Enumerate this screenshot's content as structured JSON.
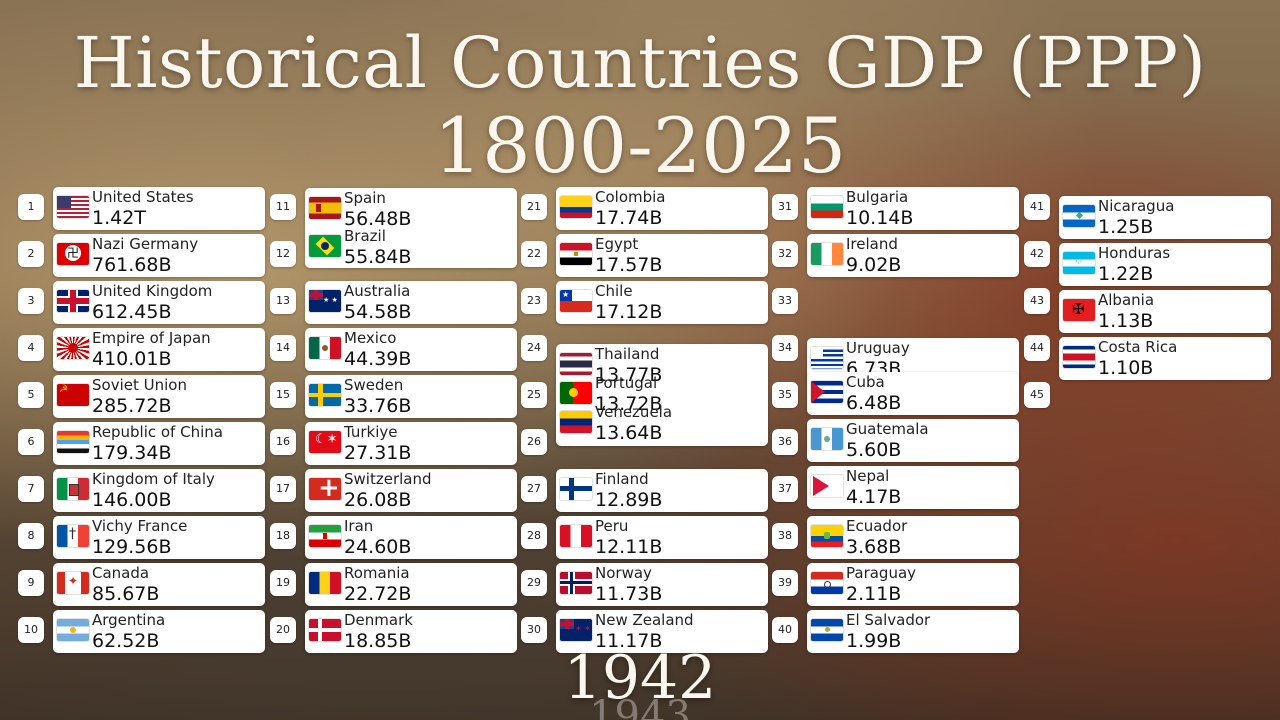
{
  "title_line1": "Historical Countries GDP (PPP)",
  "title_line2": "1800-2025",
  "year": "1942",
  "year_next": "1943",
  "entries": [
    {
      "rank": "1",
      "name": "United States",
      "value": "1.42T"
    },
    {
      "rank": "2",
      "name": "Nazi Germany",
      "value": "761.68B"
    },
    {
      "rank": "3",
      "name": "United Kingdom",
      "value": "612.45B"
    },
    {
      "rank": "4",
      "name": "Empire of Japan",
      "value": "410.01B"
    },
    {
      "rank": "5",
      "name": "Soviet Union",
      "value": "285.72B"
    },
    {
      "rank": "6",
      "name": "Republic of China",
      "value": "179.34B"
    },
    {
      "rank": "7",
      "name": "Kingdom of Italy",
      "value": "146.00B"
    },
    {
      "rank": "8",
      "name": "Vichy France",
      "value": "129.56B"
    },
    {
      "rank": "9",
      "name": "Canada",
      "value": "85.67B"
    },
    {
      "rank": "10",
      "name": "Argentina",
      "value": "62.52B"
    },
    {
      "rank": "11",
      "name": "Spain",
      "value": "56.48B"
    },
    {
      "rank": "12",
      "name": "Brazil",
      "value": "55.84B"
    },
    {
      "rank": "13",
      "name": "Australia",
      "value": "54.58B"
    },
    {
      "rank": "14",
      "name": "Mexico",
      "value": "44.39B"
    },
    {
      "rank": "15",
      "name": "Sweden",
      "value": "33.76B"
    },
    {
      "rank": "16",
      "name": "Turkiye",
      "value": "27.31B"
    },
    {
      "rank": "17",
      "name": "Switzerland",
      "value": "26.08B"
    },
    {
      "rank": "18",
      "name": "Iran",
      "value": "24.60B"
    },
    {
      "rank": "19",
      "name": "Romania",
      "value": "22.72B"
    },
    {
      "rank": "20",
      "name": "Denmark",
      "value": "18.85B"
    },
    {
      "rank": "21",
      "name": "Colombia",
      "value": "17.74B"
    },
    {
      "rank": "22",
      "name": "Egypt",
      "value": "17.57B"
    },
    {
      "rank": "23",
      "name": "Chile",
      "value": "17.12B"
    },
    {
      "rank": "24",
      "name": "Thailand",
      "value": "13.77B"
    },
    {
      "rank": "25",
      "name": "Portugal",
      "value": "13.72B"
    },
    {
      "rank": "26",
      "name": "Venezuela",
      "value": "13.64B"
    },
    {
      "rank": "27",
      "name": "Finland",
      "value": "12.89B"
    },
    {
      "rank": "28",
      "name": "Peru",
      "value": "12.11B"
    },
    {
      "rank": "29",
      "name": "Norway",
      "value": "11.73B"
    },
    {
      "rank": "30",
      "name": "New Zealand",
      "value": "11.17B"
    },
    {
      "rank": "31",
      "name": "Bulgaria",
      "value": "10.14B"
    },
    {
      "rank": "32",
      "name": "Ireland",
      "value": "9.02B"
    },
    {
      "rank": "33",
      "name": "",
      "value": ""
    },
    {
      "rank": "34",
      "name": "Uruguay",
      "value": "6.73B"
    },
    {
      "rank": "35",
      "name": "Cuba",
      "value": "6.48B"
    },
    {
      "rank": "36",
      "name": "Guatemala",
      "value": "5.60B"
    },
    {
      "rank": "37",
      "name": "Nepal",
      "value": "4.17B"
    },
    {
      "rank": "38",
      "name": "Ecuador",
      "value": "3.68B"
    },
    {
      "rank": "39",
      "name": "Paraguay",
      "value": "2.11B"
    },
    {
      "rank": "40",
      "name": "El Salvador",
      "value": "1.99B"
    },
    {
      "rank": "41",
      "name": "Nicaragua",
      "value": "1.25B"
    },
    {
      "rank": "42",
      "name": "Honduras",
      "value": "1.22B"
    },
    {
      "rank": "43",
      "name": "Albania",
      "value": "1.13B"
    },
    {
      "rank": "44",
      "name": "Costa Rica",
      "value": "1.10B"
    },
    {
      "rank": "45",
      "name": "",
      "value": ""
    }
  ],
  "flags": [
    "f-us",
    "f-nazi",
    "f-uk",
    "f-jp",
    "f-su",
    "f-roc",
    "f-it",
    "f-vf",
    "f-ca",
    "f-ar",
    "f-es",
    "f-br",
    "f-au",
    "f-mx",
    "f-se",
    "f-tr",
    "f-ch",
    "f-ir",
    "f-ro",
    "f-dk",
    "f-co",
    "f-eg",
    "f-cl",
    "f-th",
    "f-pt",
    "f-ve",
    "f-fi",
    "f-pe",
    "f-no",
    "f-nz",
    "f-bg",
    "f-ie",
    "",
    "f-uy",
    "f-cu",
    "f-gt",
    "f-np",
    "f-ec",
    "f-py",
    "f-sv",
    "f-ni",
    "f-hn",
    "f-al",
    "f-cr",
    ""
  ]
}
